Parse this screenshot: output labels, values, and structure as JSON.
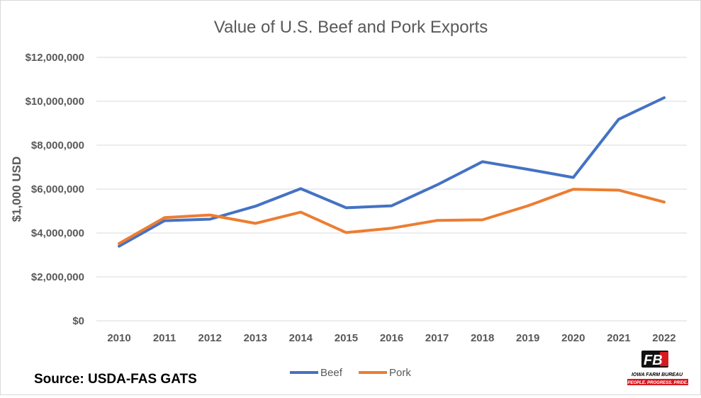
{
  "chart_data": {
    "type": "line",
    "title": "Value of U.S. Beef and Pork Exports",
    "ylabel": "$1,000 USD",
    "xlabel": "",
    "ylim": [
      0,
      12000000
    ],
    "y_ticks": [
      "$0",
      "$2,000,000",
      "$4,000,000",
      "$6,000,000",
      "$8,000,000",
      "$10,000,000",
      "$12,000,000"
    ],
    "y_tick_values": [
      0,
      2000000,
      4000000,
      6000000,
      8000000,
      10000000,
      12000000
    ],
    "categories": [
      "2010",
      "2011",
      "2012",
      "2013",
      "2014",
      "2015",
      "2016",
      "2017",
      "2018",
      "2019",
      "2020",
      "2021",
      "2022"
    ],
    "series": [
      {
        "name": "Beef",
        "color": "#4472c4",
        "values": [
          3400000,
          4560000,
          4630000,
          5220000,
          6020000,
          5150000,
          5240000,
          6190000,
          7250000,
          6900000,
          6530000,
          9180000,
          10160000
        ]
      },
      {
        "name": "Pork",
        "color": "#ed7d31",
        "values": [
          3520000,
          4700000,
          4820000,
          4440000,
          4950000,
          4020000,
          4220000,
          4570000,
          4600000,
          5240000,
          5990000,
          5950000,
          5410000
        ]
      }
    ],
    "grid": true,
    "legend_position": "bottom"
  },
  "source": "Source: USDA-FAS GATS",
  "logo": {
    "name": "IOWA FARM BUREAU",
    "tagline": "PEOPLE. PROGRESS. PRIDE."
  }
}
